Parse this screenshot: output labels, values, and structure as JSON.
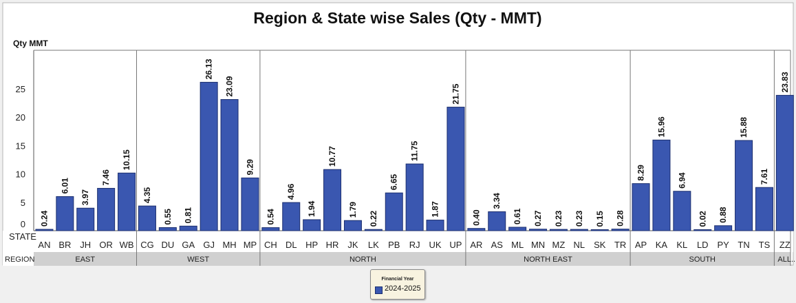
{
  "chart_data": {
    "type": "bar",
    "title": "Region & State wise Sales (Qty - MMT)",
    "ylabel": "Qty MMT",
    "ylim": [
      0,
      33
    ],
    "yticks": [
      0,
      5,
      10,
      15,
      20,
      25
    ],
    "row_labels": {
      "state": "STATE",
      "region": "REGION"
    },
    "bar_color": "#3a57b0",
    "grid": false,
    "legend": {
      "title": "Financial Year",
      "entry": "2024-2025",
      "placement": "bottom-center"
    },
    "regions": [
      {
        "name": "EAST",
        "states": [
          "AN",
          "BR",
          "JH",
          "OR",
          "WB"
        ],
        "values": [
          0.24,
          6.01,
          3.97,
          7.46,
          10.15
        ],
        "labels": [
          "0.24",
          "6.01",
          "3.97",
          "7.46",
          "10.15"
        ]
      },
      {
        "name": "WEST",
        "states": [
          "CG",
          "DU",
          "GA",
          "GJ",
          "MH",
          "MP"
        ],
        "values": [
          4.35,
          0.55,
          0.81,
          26.13,
          23.09,
          9.29
        ],
        "labels": [
          "4.35",
          "0.55",
          "0.81",
          "26.13",
          "23.09",
          "9.29"
        ]
      },
      {
        "name": "NORTH",
        "states": [
          "CH",
          "DL",
          "HP",
          "HR",
          "JK",
          "LK",
          "PB",
          "RJ",
          "UK",
          "UP"
        ],
        "values": [
          0.54,
          4.96,
          1.94,
          10.77,
          1.79,
          0.22,
          6.65,
          11.75,
          1.87,
          21.75
        ],
        "labels": [
          "0.54",
          "4.96",
          "1.94",
          "10.77",
          "1.79",
          "0.22",
          "6.65",
          "11.75",
          "1.87",
          "21.75"
        ]
      },
      {
        "name": "NORTH EAST",
        "states": [
          "AR",
          "AS",
          "ML",
          "MN",
          "MZ",
          "NL",
          "SK",
          "TR"
        ],
        "values": [
          0.4,
          3.34,
          0.61,
          0.27,
          0.23,
          0.23,
          0.15,
          0.28
        ],
        "labels": [
          "0.40",
          "3.34",
          "0.61",
          "0.27",
          "0.23",
          "0.23",
          "0.15",
          "0.28"
        ]
      },
      {
        "name": "SOUTH",
        "states": [
          "AP",
          "KA",
          "KL",
          "LD",
          "PY",
          "TN",
          "TS"
        ],
        "values": [
          8.29,
          15.96,
          6.94,
          0.02,
          0.88,
          15.88,
          7.61
        ],
        "labels": [
          "8.29",
          "15.96",
          "6.94",
          "0.02",
          "0.88",
          "15.88",
          "7.61"
        ]
      },
      {
        "name": "ALL...",
        "states": [
          "ZZ"
        ],
        "values": [
          23.83
        ],
        "labels": [
          "23.83"
        ]
      }
    ]
  }
}
